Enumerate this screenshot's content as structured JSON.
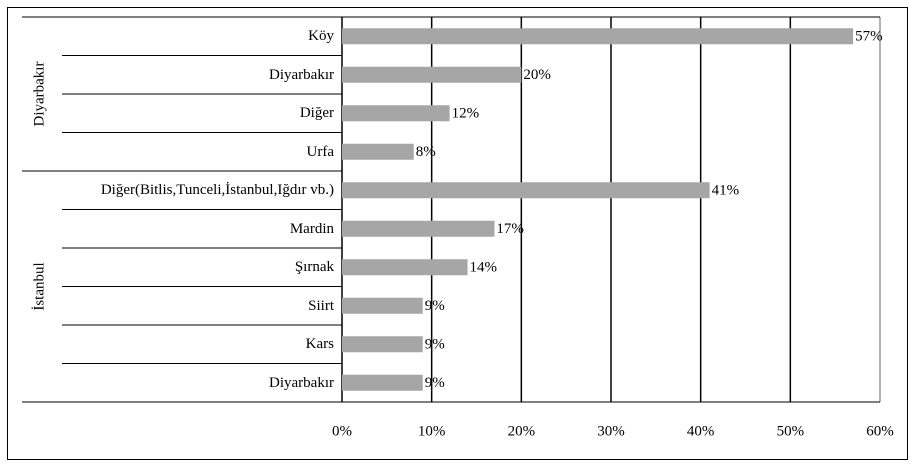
{
  "chart_data": {
    "type": "bar",
    "orientation": "horizontal",
    "color": "#a6a6a6",
    "groups": [
      {
        "name": "Diyarbakır",
        "categories": [
          "Köy",
          "Diyarbakır",
          "Diğer",
          "Urfa"
        ],
        "values": [
          57,
          20,
          12,
          8
        ],
        "value_labels": [
          "57%",
          "20%",
          "12%",
          "8%"
        ]
      },
      {
        "name": "İstanbul",
        "categories": [
          "Diğer(Bitlis,Tunceli,İstanbul,Iğdır vb.)",
          "Mardin",
          "Şırnak",
          "Siirt",
          "Kars",
          "Diyarbakır"
        ],
        "values": [
          41,
          17,
          14,
          9,
          9,
          9
        ],
        "value_labels": [
          "41%",
          "17%",
          "14%",
          "9%",
          "9%",
          "9%"
        ]
      }
    ],
    "xlim": [
      0,
      60
    ],
    "xticks": [
      {
        "value": 0,
        "label": "0%"
      },
      {
        "value": 10,
        "label": "10%"
      },
      {
        "value": 20,
        "label": "20%"
      },
      {
        "value": 30,
        "label": "30%"
      },
      {
        "value": 40,
        "label": "40%"
      },
      {
        "value": 50,
        "label": "50%"
      },
      {
        "value": 60,
        "label": "60%"
      }
    ],
    "grid": true
  }
}
